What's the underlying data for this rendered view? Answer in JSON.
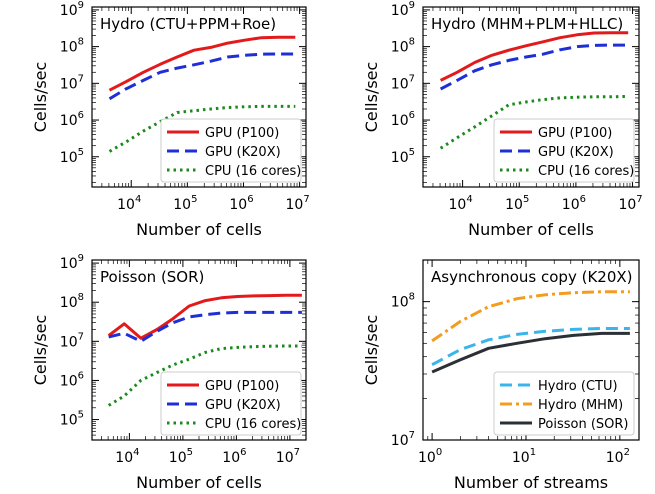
{
  "chart_data": [
    {
      "type": "line",
      "title": "Hydro (CTU+PPM+Roe)",
      "xlabel": "Number of cells",
      "ylabel": "Cells/sec",
      "xscale": "log",
      "yscale": "log",
      "xlim": [
        2000,
        13000000
      ],
      "ylim": [
        15000,
        1200000000
      ],
      "xticks": [
        {
          "v": 10000,
          "b": "10",
          "e": "4"
        },
        {
          "v": 100000,
          "b": "10",
          "e": "5"
        },
        {
          "v": 1000000,
          "b": "10",
          "e": "6"
        },
        {
          "v": 10000000,
          "b": "10",
          "e": "7"
        }
      ],
      "yticks": [
        {
          "v": 100000,
          "b": "10",
          "e": "5"
        },
        {
          "v": 1000000,
          "b": "10",
          "e": "6"
        },
        {
          "v": 10000000,
          "b": "10",
          "e": "7"
        },
        {
          "v": 100000000,
          "b": "10",
          "e": "8"
        },
        {
          "v": 1000000000,
          "b": "10",
          "e": "9"
        }
      ],
      "legend_loc": "lower-right",
      "series": [
        {
          "name": "GPU (P100)",
          "color": "#e31a1c",
          "style": "solid",
          "x": [
            4096,
            8000,
            16384,
            32768,
            65536,
            131072,
            262144,
            524288,
            1048576,
            2097152,
            4194304,
            8388608
          ],
          "y": [
            6500000,
            11000000,
            20000000,
            33000000,
            52000000,
            80000000,
            95000000,
            125000000,
            150000000,
            175000000,
            180000000,
            180000000
          ]
        },
        {
          "name": "GPU (K20X)",
          "color": "#1f2fd6",
          "style": "dashed",
          "x": [
            4096,
            8000,
            16384,
            32768,
            65536,
            131072,
            262144,
            524288,
            1048576,
            2097152,
            4194304,
            8388608
          ],
          "y": [
            3800000,
            7000000,
            12000000,
            20000000,
            26000000,
            32000000,
            40000000,
            52000000,
            58000000,
            62000000,
            63000000,
            63000000
          ]
        },
        {
          "name": "CPU (16 cores)",
          "color": "#1a8a1a",
          "style": "dotted",
          "x": [
            4096,
            8000,
            16384,
            32768,
            65536,
            131072,
            262144,
            524288,
            1048576,
            2097152,
            4194304,
            8388608
          ],
          "y": [
            140000,
            250000,
            500000,
            900000,
            1600000,
            1800000,
            2000000,
            2200000,
            2300000,
            2350000,
            2350000,
            2350000
          ]
        }
      ]
    },
    {
      "type": "line",
      "title": "Hydro (MHM+PLM+HLLC)",
      "xlabel": "Number of cells",
      "ylabel": "Cells/sec",
      "xscale": "log",
      "yscale": "log",
      "xlim": [
        2000,
        13000000
      ],
      "ylim": [
        15000,
        1200000000
      ],
      "xticks": [
        {
          "v": 10000,
          "b": "10",
          "e": "4"
        },
        {
          "v": 100000,
          "b": "10",
          "e": "5"
        },
        {
          "v": 1000000,
          "b": "10",
          "e": "6"
        },
        {
          "v": 10000000,
          "b": "10",
          "e": "7"
        }
      ],
      "yticks": [
        {
          "v": 100000,
          "b": "10",
          "e": "5"
        },
        {
          "v": 1000000,
          "b": "10",
          "e": "6"
        },
        {
          "v": 10000000,
          "b": "10",
          "e": "7"
        },
        {
          "v": 100000000,
          "b": "10",
          "e": "8"
        },
        {
          "v": 1000000000,
          "b": "10",
          "e": "9"
        }
      ],
      "legend_loc": "lower-right",
      "series": [
        {
          "name": "GPU (P100)",
          "color": "#e31a1c",
          "style": "solid",
          "x": [
            4096,
            8000,
            16384,
            32768,
            65536,
            131072,
            262144,
            524288,
            1048576,
            2097152,
            4194304,
            8388608
          ],
          "y": [
            12000000,
            20000000,
            37000000,
            58000000,
            80000000,
            105000000,
            135000000,
            175000000,
            210000000,
            235000000,
            240000000,
            240000000
          ]
        },
        {
          "name": "GPU (K20X)",
          "color": "#1f2fd6",
          "style": "dashed",
          "x": [
            4096,
            8000,
            16384,
            32768,
            65536,
            131072,
            262144,
            524288,
            1048576,
            2097152,
            4194304,
            8388608
          ],
          "y": [
            7000000,
            12000000,
            22000000,
            32000000,
            42000000,
            52000000,
            62000000,
            82000000,
            100000000,
            108000000,
            110000000,
            110000000
          ]
        },
        {
          "name": "CPU (16 cores)",
          "color": "#1a8a1a",
          "style": "dotted",
          "x": [
            4096,
            8000,
            16384,
            32768,
            65536,
            131072,
            262144,
            524288,
            1048576,
            2097152,
            4194304,
            8388608
          ],
          "y": [
            170000,
            330000,
            650000,
            1300000,
            2600000,
            3100000,
            3600000,
            4000000,
            4200000,
            4300000,
            4300000,
            4400000
          ]
        }
      ]
    },
    {
      "type": "line",
      "title": "Poisson (SOR)",
      "xlabel": "Number of cells",
      "ylabel": "Cells/sec",
      "xscale": "log",
      "yscale": "log",
      "xlim": [
        2000,
        20000000
      ],
      "ylim": [
        30000,
        1200000000
      ],
      "xticks": [
        {
          "v": 10000,
          "b": "10",
          "e": "4"
        },
        {
          "v": 100000,
          "b": "10",
          "e": "5"
        },
        {
          "v": 1000000,
          "b": "10",
          "e": "6"
        },
        {
          "v": 10000000,
          "b": "10",
          "e": "7"
        }
      ],
      "yticks": [
        {
          "v": 100000,
          "b": "10",
          "e": "5"
        },
        {
          "v": 1000000,
          "b": "10",
          "e": "6"
        },
        {
          "v": 10000000,
          "b": "10",
          "e": "7"
        },
        {
          "v": 100000000,
          "b": "10",
          "e": "8"
        },
        {
          "v": 1000000000,
          "b": "10",
          "e": "9"
        }
      ],
      "legend_loc": "lower-right",
      "series": [
        {
          "name": "GPU (P100)",
          "color": "#e31a1c",
          "style": "solid",
          "x": [
            4096,
            8000,
            16384,
            32768,
            65536,
            131072,
            262144,
            524288,
            1048576,
            2097152,
            4194304,
            8388608,
            16777216
          ],
          "y": [
            14000000,
            28000000,
            12000000,
            20000000,
            38000000,
            80000000,
            110000000,
            130000000,
            140000000,
            145000000,
            148000000,
            150000000,
            150000000
          ]
        },
        {
          "name": "GPU (K20X)",
          "color": "#1f2fd6",
          "style": "dashed",
          "x": [
            4096,
            8000,
            16384,
            32768,
            65536,
            131072,
            262144,
            524288,
            1048576,
            2097152,
            4194304,
            8388608,
            16777216
          ],
          "y": [
            13000000,
            16000000,
            10000000,
            18000000,
            30000000,
            42000000,
            48000000,
            53000000,
            55000000,
            55000000,
            55000000,
            55000000,
            55000000
          ]
        },
        {
          "name": "CPU (16 cores)",
          "color": "#1a8a1a",
          "style": "dotted",
          "x": [
            4096,
            8000,
            16384,
            32768,
            65536,
            131072,
            262144,
            524288,
            1048576,
            2097152,
            4194304,
            8388608,
            16777216
          ],
          "y": [
            230000,
            400000,
            1000000,
            1600000,
            2500000,
            3500000,
            5200000,
            6500000,
            7000000,
            7300000,
            7500000,
            7600000,
            7600000
          ]
        }
      ]
    },
    {
      "type": "line",
      "title": "Asynchronous copy (K20X)",
      "xlabel": "Number of streams",
      "ylabel": "Cells/sec",
      "xscale": "log",
      "yscale": "log",
      "xlim": [
        0.8,
        160
      ],
      "ylim": [
        10000000,
        200000000
      ],
      "xticks": [
        {
          "v": 1,
          "b": "10",
          "e": "0"
        },
        {
          "v": 10,
          "b": "10",
          "e": "1"
        },
        {
          "v": 100,
          "b": "10",
          "e": "2"
        }
      ],
      "yticks": [
        {
          "v": 10000000,
          "b": "10",
          "e": "7"
        },
        {
          "v": 100000000,
          "b": "10",
          "e": "8"
        }
      ],
      "legend_loc": "lower-right",
      "series": [
        {
          "name": "Hydro (CTU)",
          "color": "#3ab4ec",
          "style": "dashed",
          "x": [
            1,
            2,
            4,
            8,
            16,
            32,
            64,
            128
          ],
          "y": [
            35000000,
            45000000,
            53000000,
            58000000,
            61000000,
            63000000,
            64000000,
            64000000
          ]
        },
        {
          "name": "Hydro (MHM)",
          "color": "#f39c1f",
          "style": "dashdot",
          "x": [
            1,
            2,
            4,
            8,
            16,
            32,
            64,
            128
          ],
          "y": [
            52000000,
            72000000,
            92000000,
            105000000,
            112000000,
            116000000,
            118000000,
            118000000
          ]
        },
        {
          "name": "Poisson (SOR)",
          "color": "#2b2f36",
          "style": "solid",
          "x": [
            1,
            2,
            4,
            8,
            16,
            32,
            64,
            128
          ],
          "y": [
            31000000,
            38000000,
            46000000,
            50000000,
            54000000,
            57000000,
            59000000,
            59000000
          ]
        }
      ]
    }
  ]
}
